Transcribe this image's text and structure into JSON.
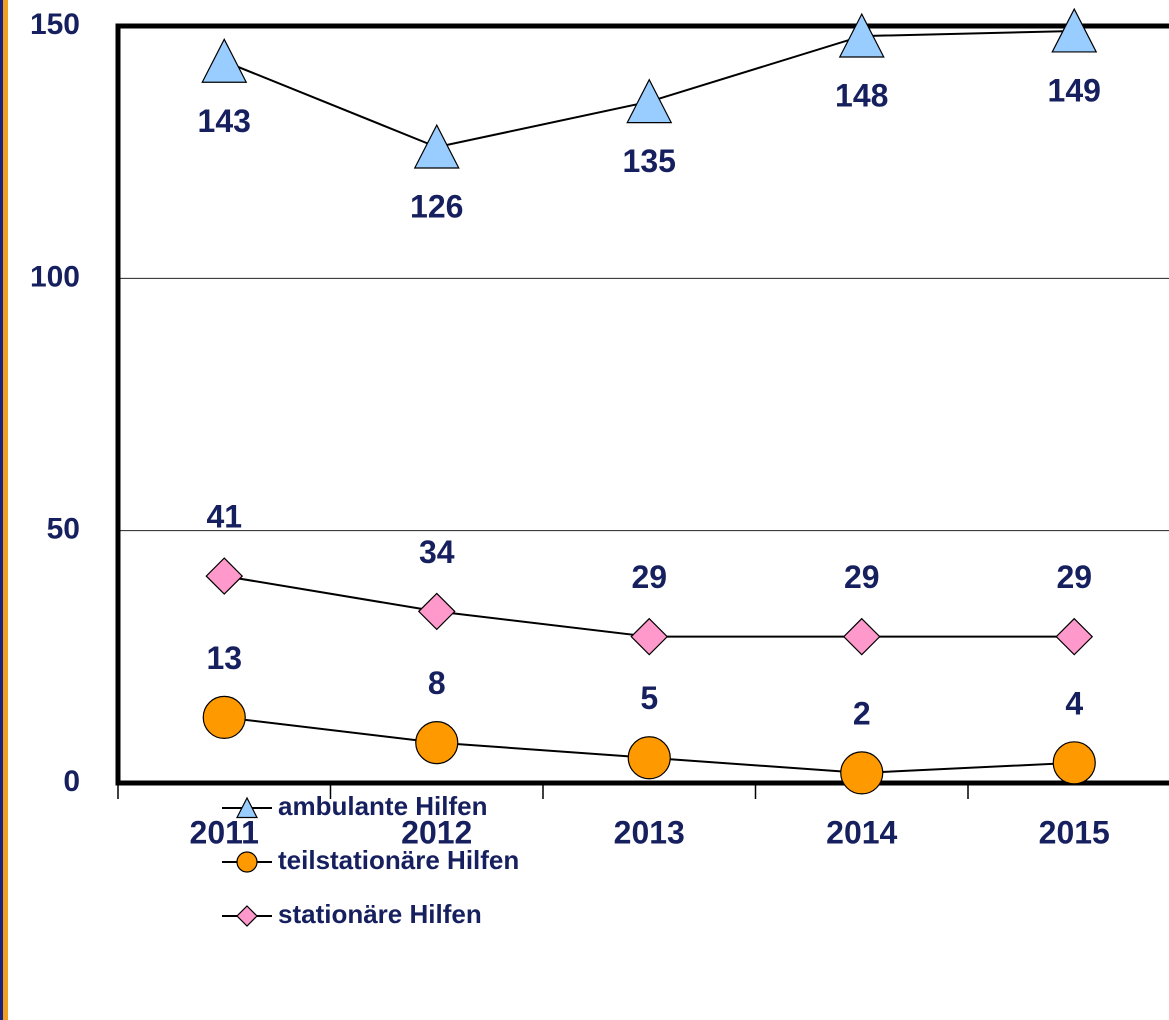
{
  "chart_data": {
    "type": "line",
    "categories": [
      "2011",
      "2012",
      "2013",
      "2014",
      "2015"
    ],
    "series": [
      {
        "name": "ambulante Hilfen",
        "color": "#99ccff",
        "marker": "triangle",
        "label_position": "below",
        "values": [
          143,
          126,
          135,
          148,
          149
        ]
      },
      {
        "name": "teilstationäre Hilfen",
        "color": "#ff9900",
        "marker": "circle",
        "label_position": "above",
        "values": [
          13,
          8,
          5,
          2,
          4
        ]
      },
      {
        "name": "stationäre Hilfen",
        "color": "#ff99cc",
        "marker": "diamond",
        "label_position": "above",
        "values": [
          41,
          34,
          29,
          29,
          29
        ]
      }
    ],
    "ylim": [
      0,
      150
    ],
    "yticks": [
      0,
      50,
      100,
      150
    ],
    "grid": true,
    "legend": "bottom"
  }
}
